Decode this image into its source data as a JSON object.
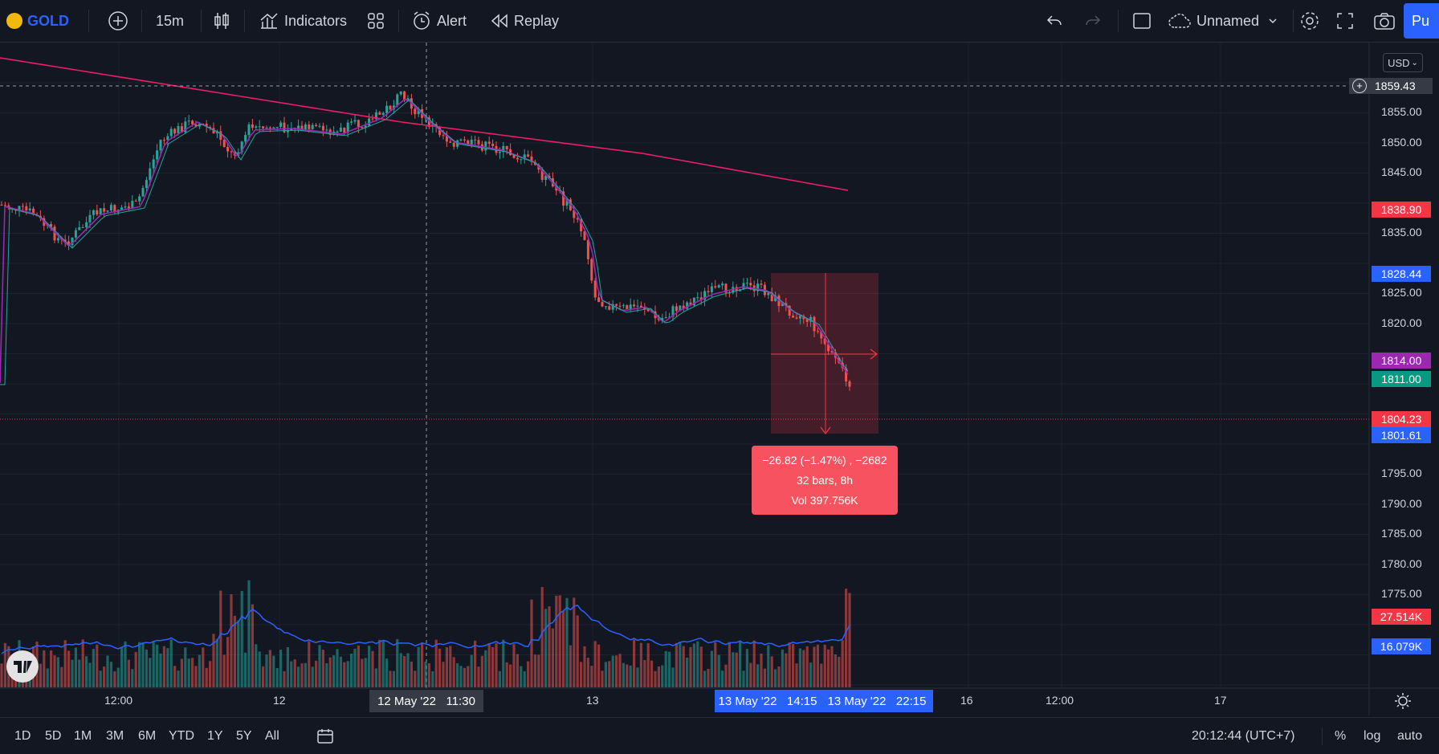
{
  "toolbar": {
    "symbol": "GOLD",
    "interval": "15m",
    "indicators_label": "Indicators",
    "alert_label": "Alert",
    "replay_label": "Replay",
    "layout_name": "Unnamed",
    "publish_label": "Pu"
  },
  "price_axis": {
    "currency": "USD",
    "ticks": [
      "1855.00",
      "1850.00",
      "1845.00",
      "1835.00",
      "1825.00",
      "1820.00",
      "1795.00",
      "1790.00",
      "1785.00",
      "1780.00",
      "1775.00"
    ],
    "labels": {
      "crosshair": "1859.43",
      "ma_red": "1838.90",
      "range_high": "1828.44",
      "ma_purple": "1814.00",
      "ma_green": "1811.00",
      "last_price": "1804.23",
      "range_low": "1801.61",
      "volume": "27.514K",
      "volume_ma": "16.079K"
    }
  },
  "time_axis": {
    "ticks": [
      "12:00",
      "12",
      "13",
      "16",
      "12:00",
      "17"
    ],
    "crosshair_label": "12 May '22   11:30",
    "range_start": "13 May '22   14:15",
    "range_end": "13 May '22   22:15"
  },
  "measure": {
    "line1": "−26.82 (−1.47%) , −2682",
    "line2": "32 bars, 8h",
    "line3": "Vol 397.756K"
  },
  "bottombar": {
    "ranges": [
      "1D",
      "5D",
      "1M",
      "3M",
      "6M",
      "YTD",
      "1Y",
      "5Y",
      "All"
    ],
    "clock": "20:12:44 (UTC+7)",
    "percent": "%",
    "log": "log",
    "auto": "auto"
  },
  "colors": {
    "background": "#131722",
    "up": "#26a69a",
    "down": "#ef5350",
    "ma_red": "#e91e63",
    "ma_purple": "#9c27b0",
    "accent": "#2962ff"
  }
}
